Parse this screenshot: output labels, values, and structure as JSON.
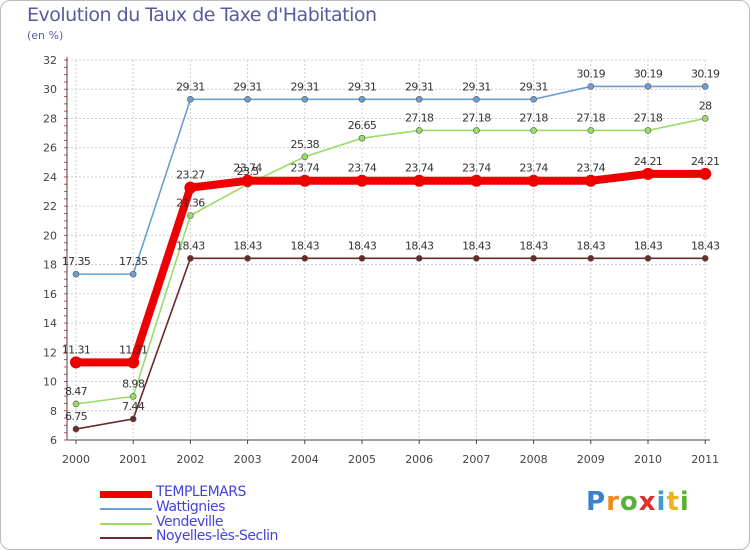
{
  "header": {
    "title": "Evolution du Taux de Taxe d'Habitation",
    "unit": "(en %)"
  },
  "logo": {
    "letters": [
      "P",
      "r",
      "o",
      "x",
      "i",
      "t",
      "i"
    ],
    "colors": [
      "#3a7fd0",
      "#f08a1c",
      "#5bb03a",
      "#e0302c",
      "#3a9fd0",
      "#f0b21c",
      "#5bb03a"
    ]
  },
  "chart_data": {
    "type": "line",
    "title": "Evolution du Taux de Taxe d'Habitation",
    "ylabel": "(en %)",
    "xlabel": "",
    "x": [
      "2000",
      "2001",
      "2002",
      "2003",
      "2004",
      "2005",
      "2006",
      "2007",
      "2008",
      "2009",
      "2010",
      "2011"
    ],
    "ylim": [
      6,
      32
    ],
    "yticks": [
      6,
      8,
      10,
      12,
      14,
      16,
      18,
      20,
      22,
      24,
      26,
      28,
      30,
      32
    ],
    "grid": true,
    "series": [
      {
        "name": "TEMPLEMARS",
        "color": "#ee0000",
        "thick": true,
        "values": [
          11.31,
          11.31,
          23.27,
          23.74,
          23.74,
          23.74,
          23.74,
          23.74,
          23.74,
          23.74,
          24.21,
          24.21
        ],
        "labels": [
          "11.31",
          "11.31",
          "23.27",
          "23.74",
          "23.74",
          "23.74",
          "23.74",
          "23.74",
          "23.74",
          "23.74",
          "24.21",
          "24.21"
        ]
      },
      {
        "name": "Wattignies",
        "color": "#6a9fd0",
        "thick": false,
        "values": [
          17.35,
          17.35,
          29.31,
          29.31,
          29.31,
          29.31,
          29.31,
          29.31,
          29.31,
          30.19,
          30.19,
          30.19
        ],
        "labels": [
          "17.35",
          "17.35",
          "29.31",
          "29.31",
          "29.31",
          "29.31",
          "29.31",
          "29.31",
          "29.31",
          "30.19",
          "30.19",
          "30.19"
        ]
      },
      {
        "name": "Vendeville",
        "color": "#99dd66",
        "thick": false,
        "values": [
          8.47,
          8.98,
          21.36,
          23.5,
          25.38,
          26.65,
          27.18,
          27.18,
          27.18,
          27.18,
          27.18,
          28
        ],
        "labels": [
          "8.47",
          "8.98",
          "21.36",
          "23.5",
          "25.38",
          "26.65",
          "27.18",
          "27.18",
          "27.18",
          "27.18",
          "27.18",
          "28"
        ]
      },
      {
        "name": "Noyelles-lès-Seclin",
        "color": "#6b2a2a",
        "thick": false,
        "values": [
          6.75,
          7.44,
          18.43,
          18.43,
          18.43,
          18.43,
          18.43,
          18.43,
          18.43,
          18.43,
          18.43,
          18.43
        ],
        "labels": [
          "6.75",
          "7.44",
          "18.43",
          "18.43",
          "18.43",
          "18.43",
          "18.43",
          "18.43",
          "18.43",
          "18.43",
          "18.43",
          "18.43"
        ]
      }
    ]
  }
}
